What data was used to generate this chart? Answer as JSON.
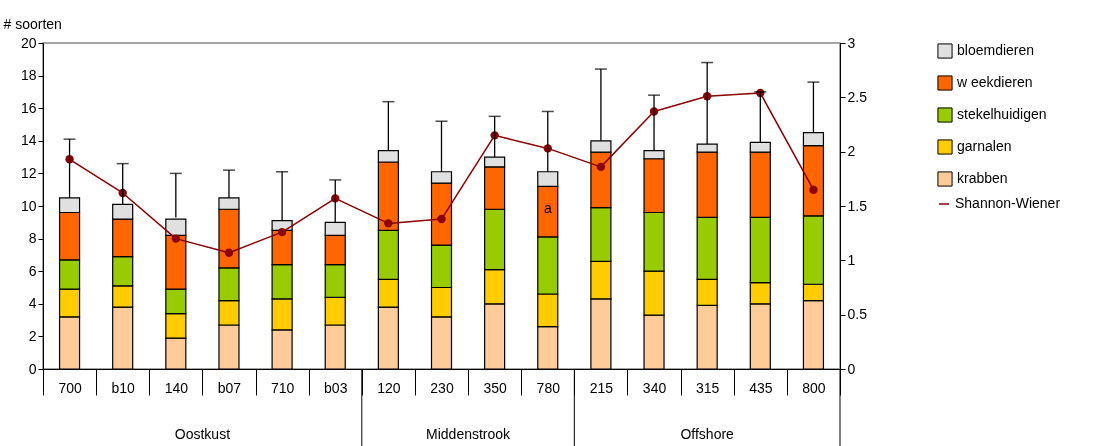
{
  "chart_data": {
    "type": "bar",
    "stacked": true,
    "ylabel": "# soorten",
    "categories": [
      "700",
      "b10",
      "140",
      "b07",
      "710",
      "b03",
      "120",
      "230",
      "350",
      "780",
      "215",
      "340",
      "315",
      "435",
      "800"
    ],
    "ylim": [
      0,
      20
    ],
    "yticks": [
      0,
      2,
      4,
      6,
      8,
      10,
      12,
      14,
      16,
      18,
      20
    ],
    "y2lim": [
      0,
      3
    ],
    "y2ticks": [
      0,
      0.5,
      1,
      1.5,
      2,
      2.5,
      3
    ],
    "grid": false,
    "legend": "right",
    "series": [
      {
        "name": "krabben",
        "color": "#ffcc99",
        "values": [
          3.2,
          3.8,
          1.9,
          2.7,
          2.4,
          2.7,
          3.8,
          3.2,
          4.0,
          2.6,
          4.3,
          3.3,
          3.9,
          4.0,
          4.2
        ]
      },
      {
        "name": "garnalen",
        "color": "#ffcc00",
        "values": [
          1.7,
          1.3,
          1.5,
          1.5,
          1.9,
          1.7,
          1.7,
          1.8,
          2.1,
          2.0,
          2.3,
          2.7,
          1.6,
          1.3,
          1.0
        ]
      },
      {
        "name": "stekelhuidigen",
        "color": "#99cc00",
        "values": [
          1.8,
          1.8,
          1.5,
          2.0,
          2.1,
          2.0,
          3.0,
          2.6,
          3.7,
          3.5,
          3.3,
          3.6,
          3.8,
          4.0,
          4.2
        ]
      },
      {
        "name": "w eekdieren",
        "color": "#ff6600",
        "values": [
          2.9,
          2.3,
          3.3,
          3.6,
          2.1,
          1.8,
          4.2,
          3.8,
          2.6,
          3.1,
          3.4,
          3.3,
          4.0,
          4.0,
          4.3
        ]
      },
      {
        "name": "bloemdieren",
        "color": "#e0e0e0",
        "values": [
          0.9,
          0.9,
          1.0,
          0.7,
          0.6,
          0.8,
          0.7,
          0.7,
          0.6,
          0.9,
          0.7,
          0.5,
          0.5,
          0.6,
          0.8
        ],
        "errors": [
          [
            10.5,
            14.1
          ],
          [
            10.1,
            12.6
          ],
          [
            9.3,
            12.0
          ],
          [
            10.5,
            12.2
          ],
          [
            9.1,
            12.1
          ],
          [
            9.0,
            11.6
          ],
          [
            13.4,
            16.4
          ],
          [
            12.1,
            15.2
          ],
          [
            13.0,
            15.5
          ],
          [
            12.1,
            15.8
          ],
          [
            14.0,
            18.4
          ],
          [
            13.4,
            16.8
          ],
          [
            13.8,
            18.8
          ],
          [
            13.9,
            17.0
          ],
          [
            14.5,
            17.6
          ]
        ]
      },
      {
        "name": "Shannon-Wiener",
        "type": "line",
        "axis": "y2",
        "color": "#8b0000",
        "marker": "circle",
        "values": [
          1.93,
          1.62,
          1.2,
          1.07,
          1.26,
          1.57,
          1.34,
          1.38,
          2.15,
          2.03,
          1.86,
          2.37,
          2.51,
          2.54,
          1.65
        ]
      }
    ],
    "annotations": [
      "a",
      "Oostkust",
      "Middenstrook",
      "Offshore"
    ]
  }
}
